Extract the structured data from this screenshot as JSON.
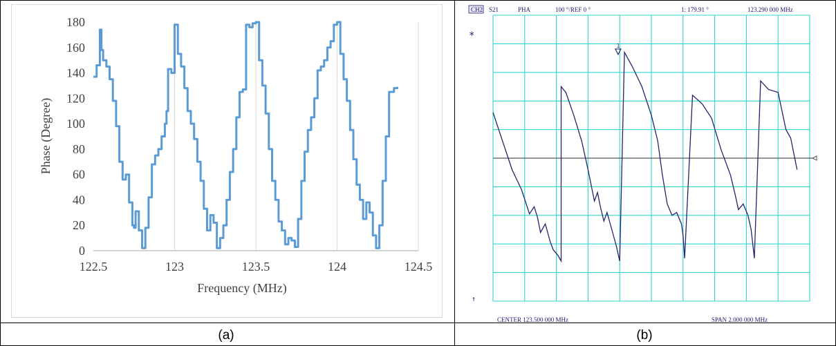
{
  "panel_a": {
    "caption": "(a)",
    "chart_data": {
      "type": "line",
      "title": "",
      "xlabel": "Frequency (MHz)",
      "ylabel": "Phase (Degree)",
      "xlim": [
        122.5,
        124.5
      ],
      "ylim": [
        0,
        180
      ],
      "xticks": [
        "122.5",
        "123",
        "123.5",
        "124",
        "124.5"
      ],
      "yticks": [
        "0",
        "20",
        "40",
        "60",
        "80",
        "100",
        "120",
        "140",
        "160",
        "180"
      ],
      "grid": "vertical",
      "legend": "none",
      "series": [
        {
          "color": "#5b9bd5",
          "x": [
            122.5,
            122.52,
            122.54,
            122.55,
            122.56,
            122.58,
            122.6,
            122.62,
            122.64,
            122.66,
            122.68,
            122.7,
            122.72,
            122.74,
            122.75,
            122.76,
            122.78,
            122.8,
            122.82,
            122.84,
            122.86,
            122.88,
            122.9,
            122.92,
            122.94,
            122.95,
            122.96,
            122.98,
            123,
            123.02,
            123.04,
            123.06,
            123.08,
            123.1,
            123.12,
            123.14,
            123.16,
            123.18,
            123.2,
            123.22,
            123.24,
            123.26,
            123.28,
            123.3,
            123.32,
            123.34,
            123.36,
            123.38,
            123.4,
            123.42,
            123.44,
            123.46,
            123.48,
            123.5,
            123.52,
            123.54,
            123.56,
            123.58,
            123.6,
            123.62,
            123.64,
            123.66,
            123.68,
            123.7,
            123.72,
            123.74,
            123.76,
            123.78,
            123.8,
            123.82,
            123.84,
            123.86,
            123.88,
            123.9,
            123.92,
            123.94,
            123.96,
            123.98,
            124,
            124.02,
            124.04,
            124.06,
            124.08,
            124.1,
            124.12,
            124.14,
            124.16,
            124.18,
            124.2,
            124.22,
            124.24,
            124.26,
            124.28,
            124.3,
            124.32,
            124.35,
            124.37
          ],
          "y": [
            137,
            146,
            174,
            158,
            150,
            145,
            135,
            118,
            98,
            70,
            56,
            60,
            38,
            20,
            18,
            31,
            16,
            2,
            18,
            42,
            68,
            75,
            80,
            90,
            100,
            110,
            143,
            140,
            178,
            155,
            145,
            128,
            110,
            100,
            88,
            70,
            55,
            33,
            16,
            28,
            22,
            2,
            10,
            20,
            40,
            62,
            80,
            105,
            125,
            127,
            178,
            176,
            179,
            180,
            150,
            130,
            108,
            80,
            55,
            40,
            23,
            16,
            5,
            10,
            8,
            3,
            25,
            55,
            78,
            95,
            105,
            120,
            142,
            145,
            150,
            160,
            165,
            178,
            180,
            155,
            135,
            118,
            95,
            72,
            52,
            40,
            25,
            38,
            30,
            12,
            2,
            20,
            55,
            90,
            125,
            128,
            129
          ]
        }
      ]
    }
  },
  "panel_b": {
    "caption": "(b)",
    "header": {
      "channel": "CH2",
      "param": "S21",
      "format": "PHA",
      "scale": "100 °/REF 0 °",
      "marker_readout": "1: 179.91 °",
      "marker_freq": "123.290 000 MHz"
    },
    "marker_label": "1",
    "star_glyph": "*",
    "arrow_glyph": "↑",
    "footer": {
      "center": "CENTER 123.500 000 MHz",
      "span": "SPAN 2.000 000 MHz"
    },
    "colors": {
      "grid": "#2fd5cf",
      "trace": "#23236e",
      "reference": "#555555"
    },
    "chart_data": {
      "type": "line",
      "center_mhz": 123.5,
      "span_mhz": 2.0,
      "ref_deg": 0,
      "scale_deg_per_div": 100,
      "ylim": [
        -500,
        500
      ],
      "grid_divisions": [
        10,
        10
      ],
      "series": [
        {
          "x": [
            122.5,
            122.56,
            122.62,
            122.68,
            122.73,
            122.76,
            122.78,
            122.8,
            122.83,
            122.86,
            122.88,
            122.91,
            122.93,
            122.93,
            122.96,
            123.01,
            123.06,
            123.1,
            123.14,
            123.16,
            123.18,
            123.2,
            123.22,
            123.25,
            123.28,
            123.3,
            123.33,
            123.38,
            123.44,
            123.5,
            123.54,
            123.57,
            123.6,
            123.63,
            123.66,
            123.69,
            123.7,
            123.71,
            123.76,
            123.82,
            123.88,
            123.94,
            124.0,
            124.03,
            124.05,
            124.08,
            124.11,
            124.13,
            124.14,
            124.15,
            124.19,
            124.24,
            124.3,
            124.35,
            124.38,
            124.42
          ],
          "y": [
            160,
            60,
            -40,
            -110,
            -195,
            -170,
            -205,
            -260,
            -230,
            -290,
            -320,
            -340,
            -360,
            250,
            230,
            150,
            60,
            -40,
            -150,
            -120,
            -175,
            -220,
            -190,
            -250,
            -310,
            -360,
            370,
            320,
            250,
            150,
            60,
            -60,
            -160,
            -200,
            -190,
            -230,
            -270,
            -350,
            220,
            190,
            140,
            30,
            -60,
            -130,
            -180,
            -160,
            -200,
            -250,
            -300,
            -350,
            270,
            240,
            230,
            100,
            70,
            -40
          ]
        }
      ]
    }
  }
}
